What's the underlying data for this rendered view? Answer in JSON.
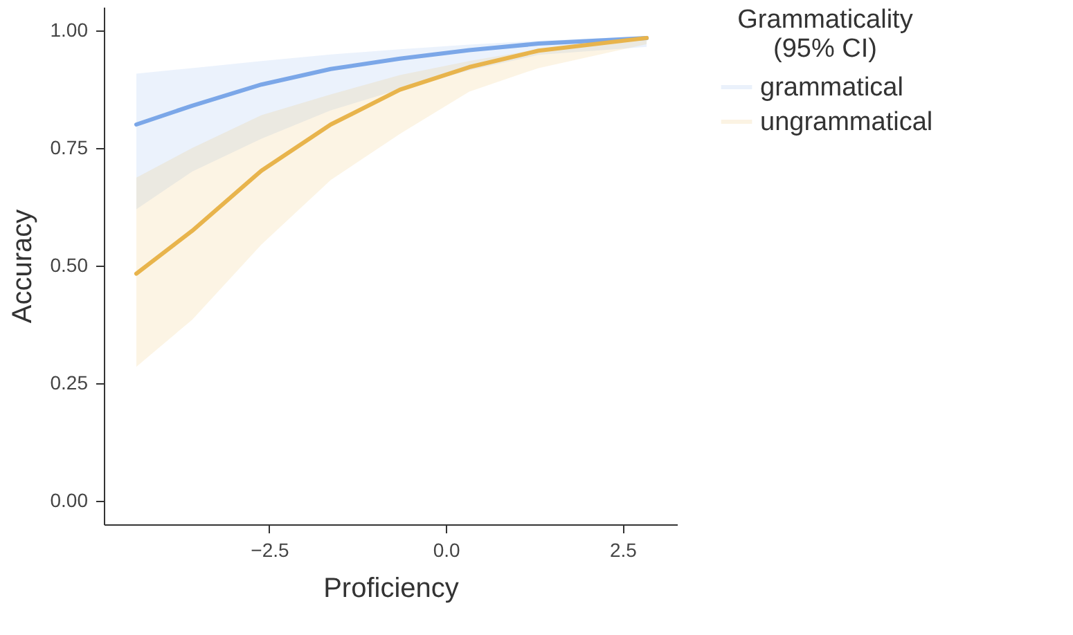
{
  "chart_data": {
    "type": "line",
    "xlabel": "Proficiency",
    "ylabel": "Accuracy",
    "legend_title": "Grammaticality\n(95% CI)",
    "legend": "right",
    "grid": false,
    "marker": "none",
    "line_style": "solid",
    "x": [
      -4.38,
      -3.59,
      -2.61,
      -1.63,
      -0.65,
      0.33,
      1.31,
      2.84
    ],
    "xlim": [
      -4.84,
      3.27
    ],
    "xticks": [
      -2.5,
      {
        "value": 0,
        "label": "0.0"
      },
      2.5
    ],
    "ylim": [
      -0.05,
      1.05
    ],
    "yticks": [
      {
        "value": 0,
        "label": "0.00"
      },
      0.25,
      {
        "value": 0.5,
        "label": "0.50"
      },
      0.75,
      {
        "value": 1,
        "label": "1.00"
      }
    ],
    "series": [
      {
        "name": "grammatical",
        "color": "#7ba7e8",
        "values": [
          0.8,
          0.84,
          0.885,
          0.918,
          0.94,
          0.958,
          0.972,
          0.984
        ],
        "lower": [
          0.62,
          0.7,
          0.77,
          0.83,
          0.875,
          0.915,
          0.948,
          0.965
        ],
        "upper": [
          0.908,
          0.92,
          0.935,
          0.949,
          0.96,
          0.97,
          0.978,
          0.988
        ]
      },
      {
        "name": "ungrammatical",
        "color": "#e8b44c",
        "values": [
          0.483,
          0.574,
          0.702,
          0.8,
          0.874,
          0.922,
          0.957,
          0.984
        ],
        "lower": [
          0.285,
          0.385,
          0.545,
          0.682,
          0.78,
          0.87,
          0.92,
          0.971
        ],
        "upper": [
          0.687,
          0.75,
          0.82,
          0.864,
          0.905,
          0.935,
          0.96,
          0.981
        ]
      }
    ]
  }
}
